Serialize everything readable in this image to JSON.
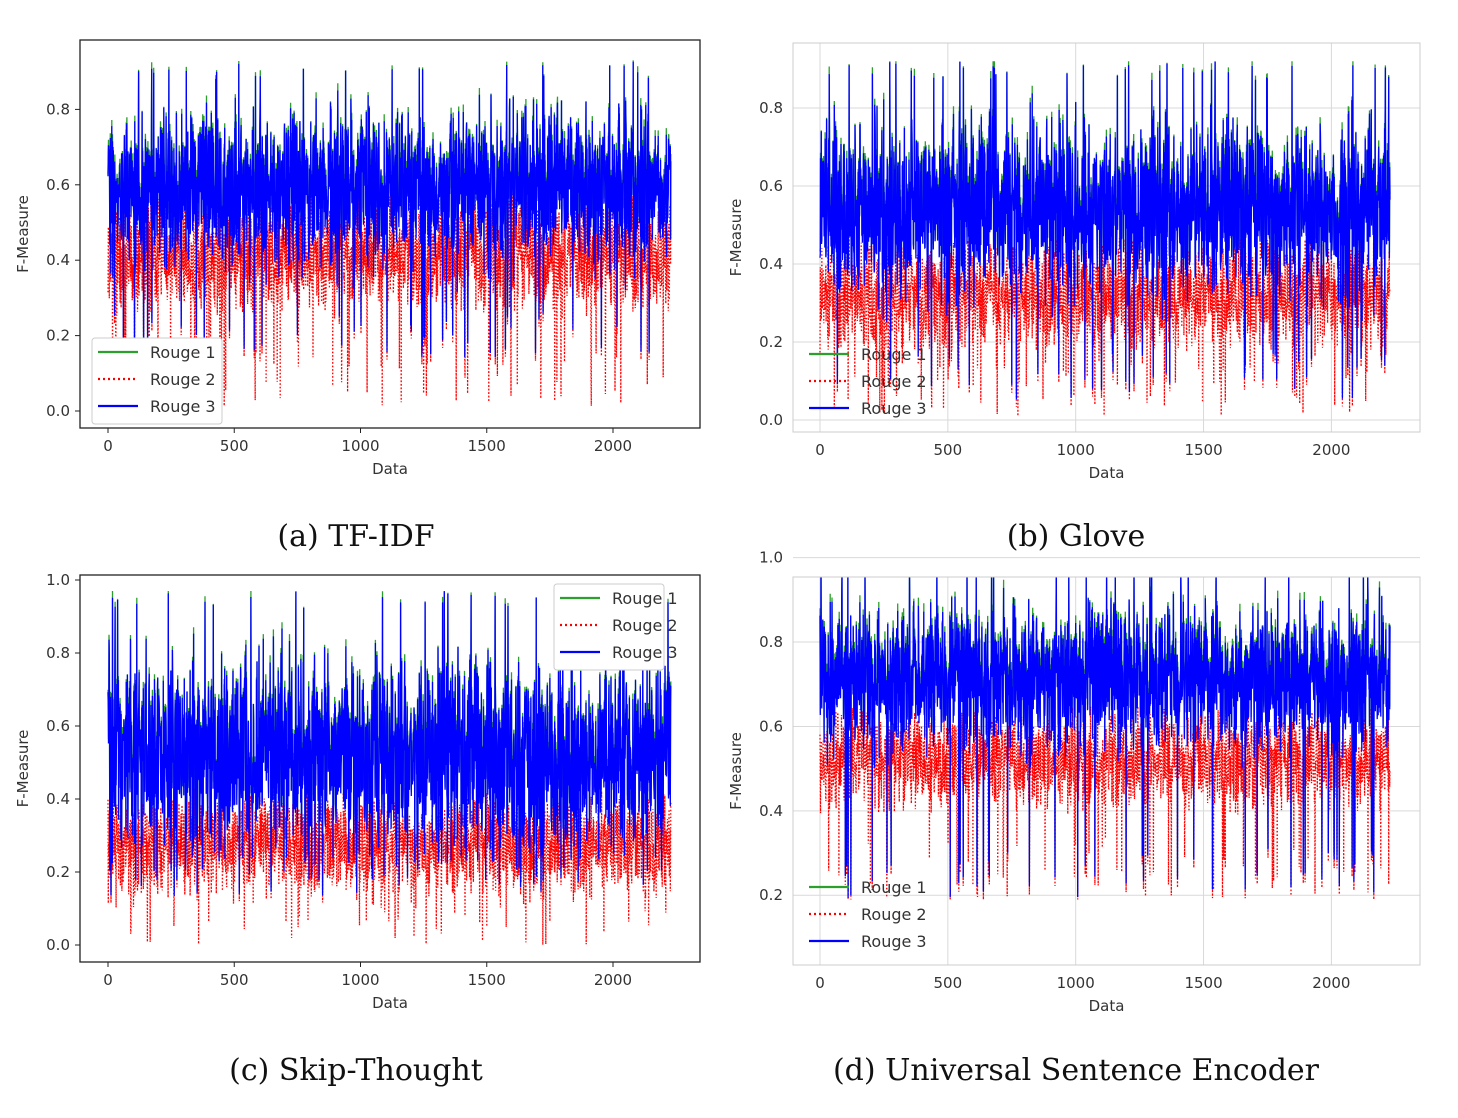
{
  "chart_data": [
    {
      "caption": "(a) TF-IDF",
      "type": "line",
      "xlabel": "Data",
      "ylabel": "F-Measure",
      "xlim": [
        0,
        2230
      ],
      "ylim": [
        0.0,
        0.9
      ],
      "x_ticks": [
        "0",
        "500",
        "1000",
        "1500",
        "2000"
      ],
      "y_ticks": [
        "0.0",
        "0.2",
        "0.4",
        "0.6",
        "0.8"
      ],
      "grid": false,
      "legend_position": "lower-left",
      "n_points": 2230,
      "series": [
        {
          "name": "Rouge 1",
          "color": "#2ca02c",
          "style": "solid",
          "mean": 0.6,
          "max": 0.93,
          "min": 0.35
        },
        {
          "name": "Rouge 2",
          "color": "#ff0000",
          "style": "dotted",
          "mean": 0.42,
          "max": 0.62,
          "min": 0.01
        },
        {
          "name": "Rouge 3",
          "color": "#0000ff",
          "style": "solid",
          "mean": 0.59,
          "max": 0.93,
          "min": 0.14
        }
      ]
    },
    {
      "caption": "(b) Glove",
      "type": "line",
      "xlabel": "Data",
      "ylabel": "F-Measure",
      "xlim": [
        0,
        2230
      ],
      "ylim": [
        0.0,
        0.95
      ],
      "x_ticks": [
        "0",
        "500",
        "1000",
        "1500",
        "2000"
      ],
      "y_ticks": [
        "0.0",
        "0.2",
        "0.4",
        "0.6",
        "0.8"
      ],
      "grid": true,
      "legend_position": "lower-left",
      "n_points": 2230,
      "series": [
        {
          "name": "Rouge 1",
          "color": "#2ca02c",
          "style": "solid",
          "mean": 0.55,
          "max": 0.92,
          "min": 0.1
        },
        {
          "name": "Rouge 2",
          "color": "#ff0000",
          "style": "dotted",
          "mean": 0.32,
          "max": 0.5,
          "min": 0.01
        },
        {
          "name": "Rouge 3",
          "color": "#0000ff",
          "style": "solid",
          "mean": 0.54,
          "max": 0.92,
          "min": 0.05
        }
      ]
    },
    {
      "caption": "(c) Skip-Thought",
      "type": "line",
      "xlabel": "Data",
      "ylabel": "F-Measure",
      "xlim": [
        0,
        2230
      ],
      "ylim": [
        0.0,
        1.0
      ],
      "x_ticks": [
        "0",
        "500",
        "1000",
        "1500",
        "2000"
      ],
      "y_ticks": [
        "0.0",
        "0.2",
        "0.4",
        "0.6",
        "0.8",
        "1.0"
      ],
      "grid": false,
      "legend_position": "upper-right",
      "n_points": 2230,
      "series": [
        {
          "name": "Rouge 1",
          "color": "#2ca02c",
          "style": "solid",
          "mean": 0.53,
          "max": 0.97,
          "min": 0.14
        },
        {
          "name": "Rouge 2",
          "color": "#ff0000",
          "style": "dotted",
          "mean": 0.28,
          "max": 0.45,
          "min": 0.0
        },
        {
          "name": "Rouge 3",
          "color": "#0000ff",
          "style": "solid",
          "mean": 0.52,
          "max": 0.97,
          "min": 0.13
        }
      ]
    },
    {
      "caption": "(d) Universal Sentence Encoder",
      "type": "line",
      "xlabel": "Data",
      "ylabel": "F-Measure",
      "xlim": [
        0,
        2230
      ],
      "ylim": [
        0.12,
        1.02
      ],
      "x_ticks": [
        "0",
        "500",
        "1000",
        "1500",
        "2000"
      ],
      "y_ticks": [
        "0.2",
        "0.4",
        "0.6",
        "0.8",
        "1.0"
      ],
      "grid": true,
      "legend_position": "lower-left",
      "n_points": 2230,
      "series": [
        {
          "name": "Rouge 1",
          "color": "#2ca02c",
          "style": "solid",
          "mean": 0.72,
          "max": 1.0,
          "min": 0.19
        },
        {
          "name": "Rouge 2",
          "color": "#ff0000",
          "style": "dotted",
          "mean": 0.52,
          "max": 0.67,
          "min": 0.19
        },
        {
          "name": "Rouge 3",
          "color": "#0000ff",
          "style": "solid",
          "mean": 0.71,
          "max": 1.0,
          "min": 0.19
        }
      ]
    }
  ]
}
